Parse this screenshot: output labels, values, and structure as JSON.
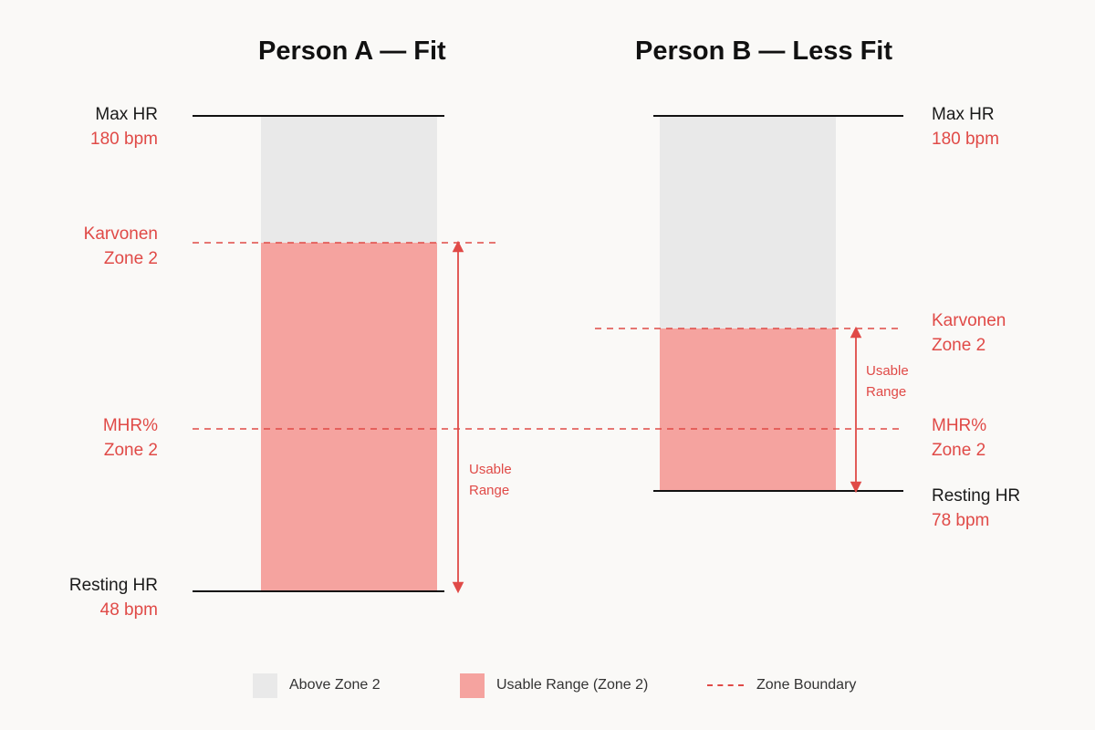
{
  "colors": {
    "above": "#e9e9e9",
    "usable": "#f5a39f",
    "accent": "#e04a47",
    "line": "#111111"
  },
  "person_a": {
    "title": "Person A — Fit",
    "max_hr_label": "Max HR",
    "max_hr_value": "180 bpm",
    "karvonen_line1": "Karvonen",
    "karvonen_line2": "Zone 2",
    "mhr_line1": "MHR%",
    "mhr_line2": "Zone 2",
    "usable_line1": "Usable",
    "usable_line2": "Range",
    "resting_hr_label": "Resting HR",
    "resting_hr_value": "48 bpm"
  },
  "person_b": {
    "title": "Person B — Less Fit",
    "max_hr_label": "Max HR",
    "max_hr_value": "180 bpm",
    "karvonen_line1": "Karvonen",
    "karvonen_line2": "Zone 2",
    "usable_line1": "Usable",
    "usable_line2": "Range",
    "mhr_line1": "MHR%",
    "mhr_line2": "Zone 2",
    "resting_hr_label": "Resting HR",
    "resting_hr_value": "78 bpm"
  },
  "legend": {
    "above": "Above Zone 2",
    "usable": "Usable Range (Zone 2)",
    "boundary": "Zone Boundary"
  }
}
